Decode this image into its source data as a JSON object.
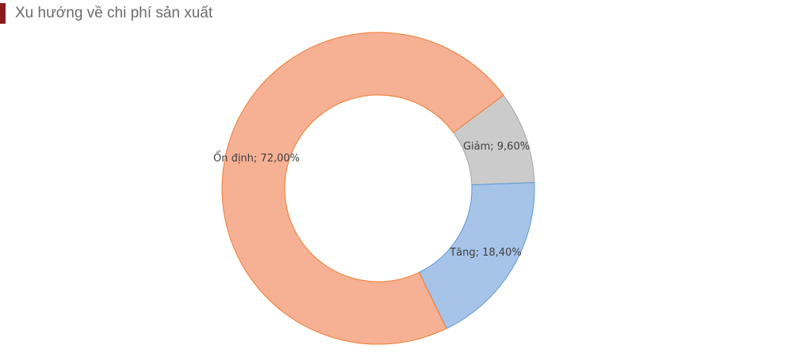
{
  "chart_data": {
    "type": "donut",
    "title": "Xu hướng về chi phí sản xuất",
    "values": [
      9.6,
      18.4,
      72
    ],
    "value_labels": [
      "Giảm; 9,60%",
      "Tăng; 18,40%",
      "Ổn định; 72,00%"
    ],
    "colors": [
      "#cbcbcb",
      "#a6c3e8",
      "#f6b094"
    ],
    "edge_colors": [
      "#a5a5a5",
      "#5b9bd5",
      "#ed7d31"
    ]
  }
}
